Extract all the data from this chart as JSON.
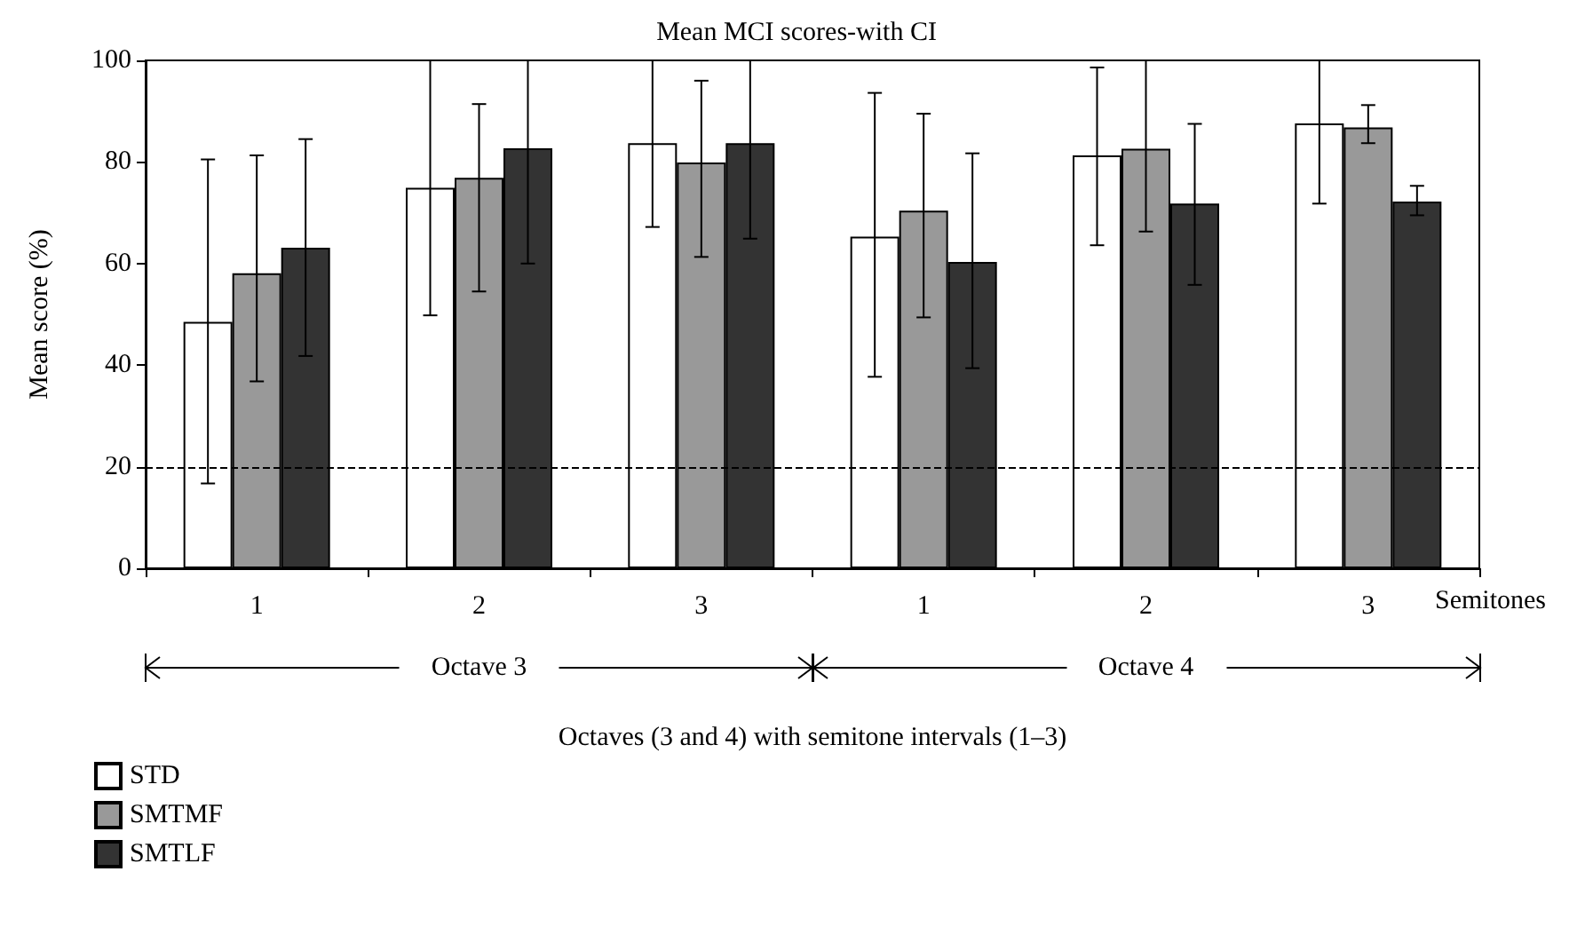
{
  "chart_data": {
    "type": "bar",
    "title": "Mean MCI scores-with CI",
    "xlabel": "Octaves (3 and 4) with semitone intervals (1–3)",
    "ylabel": "Mean score (%)",
    "categories": [
      "1",
      "2",
      "3",
      "1",
      "2",
      "3"
    ],
    "series": [
      {
        "name": "STD",
        "color": "#ffffff",
        "values": [
          48.5,
          74.9,
          83.7,
          65.3,
          81.3,
          87.6
        ],
        "errors": [
          [
            16.7,
            80.5
          ],
          [
            49.8,
            100
          ],
          [
            67.2,
            100
          ],
          [
            37.7,
            93.6
          ],
          [
            63.6,
            98.6
          ],
          [
            71.8,
            100
          ]
        ]
      },
      {
        "name": "SMTMF",
        "color": "#999999",
        "values": [
          58.1,
          76.9,
          79.9,
          70.4,
          82.6,
          86.8
        ],
        "errors": [
          [
            36.8,
            81.3
          ],
          [
            54.5,
            91.4
          ],
          [
            61.3,
            96
          ],
          [
            49.4,
            89.5
          ],
          [
            66.3,
            100
          ],
          [
            83.7,
            91.2
          ]
        ]
      },
      {
        "name": "SMTLF",
        "color": "#333333",
        "values": [
          63.1,
          82.7,
          83.7,
          60.3,
          71.8,
          72.2
        ],
        "errors": [
          [
            41.8,
            84.5
          ],
          [
            60,
            100
          ],
          [
            64.9,
            100
          ],
          [
            39.4,
            81.7
          ],
          [
            55.8,
            87.5
          ],
          [
            69.5,
            75.3
          ]
        ]
      }
    ],
    "ylim": [
      0,
      100
    ],
    "yticks": [
      0,
      20,
      40,
      60,
      80,
      100
    ],
    "grid": false,
    "legend": "bottom left",
    "ref_lines": [
      {
        "axis": "y",
        "value": 20,
        "line_style": "dashed"
      }
    ],
    "annotations": [
      "Semitones",
      "Octave 3",
      "Octave 4"
    ]
  }
}
